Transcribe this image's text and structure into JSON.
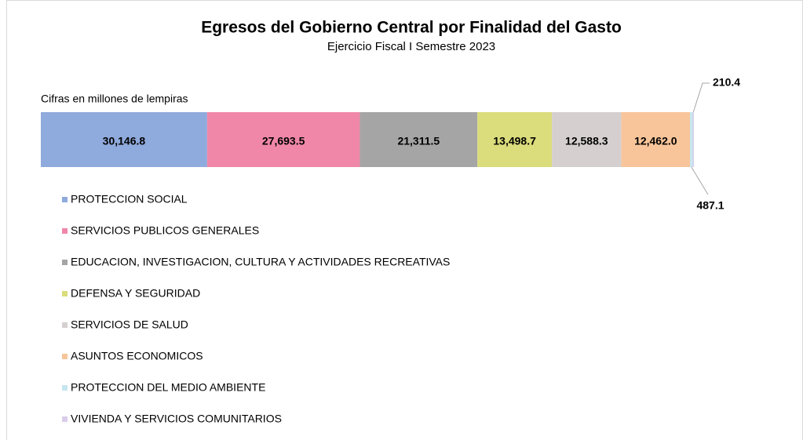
{
  "chart_data": {
    "type": "stacked-bar-horizontal",
    "title": "Egresos del Gobierno Central por Finalidad del Gasto",
    "subtitle": "Ejercicio Fiscal I Semestre 2023",
    "annotation": "Cifras en millones de lempiras",
    "legend": "bottom-left",
    "series": [
      {
        "name": "PROTECCION SOCIAL",
        "color": "#8faadc",
        "values": [
          30146.8
        ],
        "value_labels": [
          "30,146.8"
        ]
      },
      {
        "name": "SERVICIOS PUBLICOS GENERALES",
        "color": "#f087a8",
        "values": [
          27693.5
        ],
        "value_labels": [
          "27,693.5"
        ]
      },
      {
        "name": "EDUCACION, INVESTIGACION, CULTURA Y ACTIVIDADES RECREATIVAS",
        "color": "#a5a5a5",
        "values": [
          21311.5
        ],
        "value_labels": [
          "21,311.5"
        ]
      },
      {
        "name": "DEFENSA Y SEGURIDAD",
        "color": "#dbdc7c",
        "values": [
          13498.7
        ],
        "value_labels": [
          "13,498.7"
        ]
      },
      {
        "name": "SERVICIOS DE SALUD",
        "color": "#d5d0cf",
        "values": [
          12588.3
        ],
        "value_labels": [
          "12,588.3"
        ]
      },
      {
        "name": "ASUNTOS ECONOMICOS",
        "color": "#f8c59a",
        "values": [
          12462.0
        ],
        "value_labels": [
          "12,462.0"
        ]
      },
      {
        "name": "PROTECCION DEL MEDIO AMBIENTE",
        "color": "#c6e6ef",
        "values": [
          487.1
        ],
        "value_labels": [
          "487.1"
        ]
      },
      {
        "name": "VIVIENDA Y SERVICIOS COMUNITARIOS",
        "color": "#d9cdea",
        "values": [
          210.4
        ],
        "value_labels": [
          "210.4"
        ]
      }
    ]
  }
}
